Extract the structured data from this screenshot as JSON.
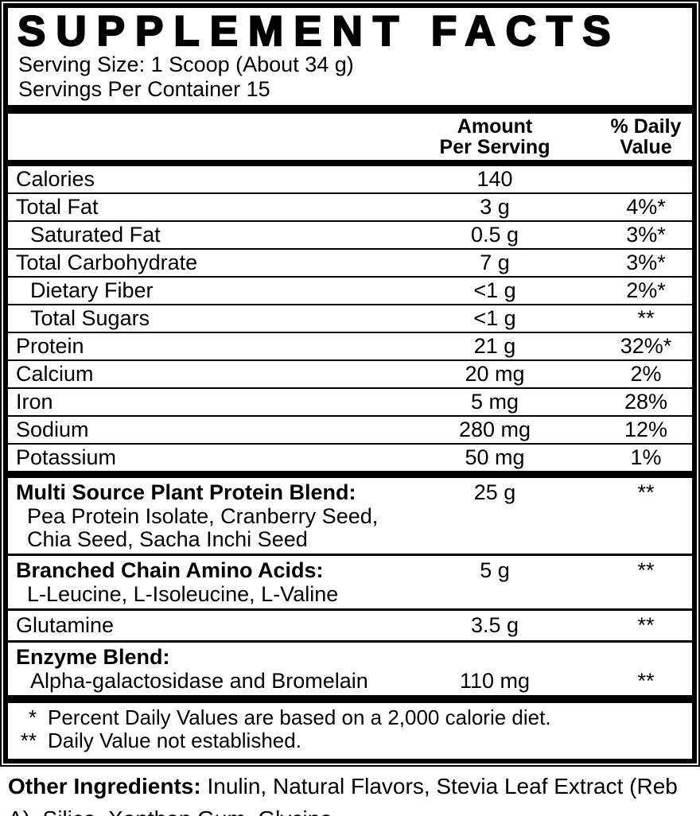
{
  "panel": {
    "title": "SUPPLEMENT FACTS",
    "serving_size": "Serving Size: 1 Scoop (About 34 g)",
    "servings_per_container": "Servings Per Container 15",
    "columns": {
      "amount_line1": "Amount",
      "amount_line2": "Per Serving",
      "dv_line1": "% Daily",
      "dv_line2": "Value"
    },
    "nutrients": [
      {
        "label": "Calories",
        "amount": "140",
        "dv": ""
      },
      {
        "label": "Total Fat",
        "amount": "3 g",
        "dv": "4%*"
      },
      {
        "label": "Saturated Fat",
        "amount": "0.5 g",
        "dv": "3%*"
      },
      {
        "label": "Total Carbohydrate",
        "amount": "7 g",
        "dv": "3%*"
      },
      {
        "label": "Dietary Fiber",
        "amount": "<1 g",
        "dv": "2%*"
      },
      {
        "label": "Total Sugars",
        "amount": "<1 g",
        "dv": "**"
      },
      {
        "label": "Protein",
        "amount": "21 g",
        "dv": "32%*"
      },
      {
        "label": "Calcium",
        "amount": "20 mg",
        "dv": "2%"
      },
      {
        "label": "Iron",
        "amount": "5 mg",
        "dv": "28%"
      },
      {
        "label": "Sodium",
        "amount": "280 mg",
        "dv": "12%"
      },
      {
        "label": "Potassium",
        "amount": "50 mg",
        "dv": "1%"
      }
    ],
    "blends": [
      {
        "label": "Multi Source Plant Protein Blend:",
        "amount": "25 g",
        "dv": "**",
        "sub_line1": "Pea Protein Isolate, Cranberry Seed,",
        "sub_line2": "Chia Seed, Sacha Inchi Seed"
      },
      {
        "label": "Branched Chain Amino Acids:",
        "amount": "5 g",
        "dv": "**",
        "sub_line1": "L-Leucine, L-Isoleucine, L-Valine"
      },
      {
        "label": "Glutamine",
        "amount": "3.5 g",
        "dv": "**"
      },
      {
        "label": "Enzyme Blend:",
        "sub_label": "Alpha-galactosidase and Bromelain",
        "amount": "110 mg",
        "dv": "**"
      }
    ],
    "footnotes": [
      {
        "marker": "*",
        "text": "Percent Daily Values are based on a 2,000 calorie diet."
      },
      {
        "marker": "**",
        "text": "Daily Value not established."
      }
    ]
  },
  "other_ingredients": {
    "label": "Other Ingredients:",
    "text": " Inulin, Natural Flavors, Stevia Leaf Extract (Reb A), Silica, Xanthan Gum, Glycine."
  },
  "colors": {
    "ink": "#000000",
    "background": "#ffffff"
  }
}
